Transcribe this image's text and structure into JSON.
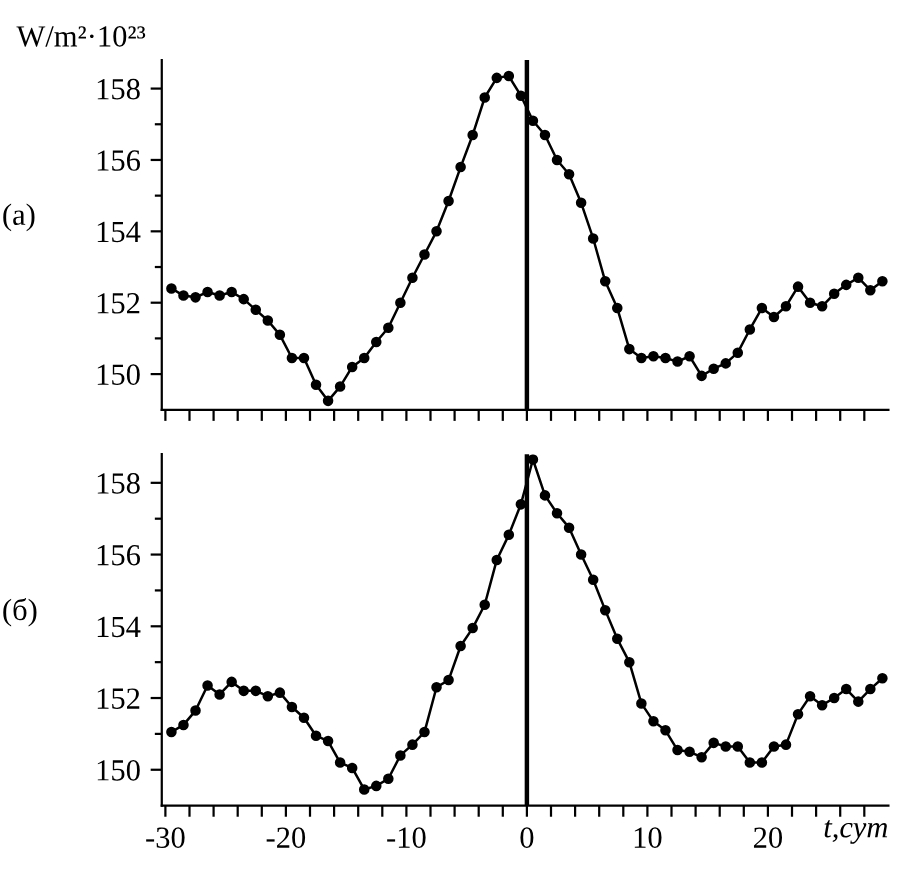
{
  "chart_data": [
    {
      "type": "line",
      "ylabel": "W/m²·10²³",
      "annotations": [
        "(а)"
      ],
      "x": [
        -29.5,
        -28.5,
        -27.5,
        -26.5,
        -25.5,
        -24.5,
        -23.5,
        -22.5,
        -21.5,
        -20.5,
        -19.5,
        -18.5,
        -17.5,
        -16.5,
        -15.5,
        -14.5,
        -13.5,
        -12.5,
        -11.5,
        -10.5,
        -9.5,
        -8.5,
        -7.5,
        -6.5,
        -5.5,
        -4.5,
        -3.5,
        -2.5,
        -1.5,
        -0.5,
        0.5,
        1.5,
        2.5,
        3.5,
        4.5,
        5.5,
        6.5,
        7.5,
        8.5,
        9.5,
        10.5,
        11.5,
        12.5,
        13.5,
        14.5,
        15.5,
        16.5,
        17.5,
        18.5,
        19.5,
        20.5,
        21.5,
        22.5,
        23.5,
        24.5,
        25.5,
        26.5,
        27.5,
        28.5,
        29.5
      ],
      "series": [
        {
          "color": "#000000",
          "values": [
            152.4,
            152.2,
            152.15,
            152.3,
            152.2,
            152.3,
            152.1,
            151.8,
            151.5,
            151.1,
            150.45,
            150.45,
            149.7,
            149.25,
            149.65,
            150.2,
            150.45,
            150.9,
            151.3,
            152.0,
            152.7,
            153.35,
            154.0,
            154.85,
            155.8,
            156.7,
            157.75,
            158.3,
            158.35,
            157.8,
            157.1,
            156.7,
            156.0,
            155.6,
            154.8,
            153.8,
            152.6,
            151.85,
            150.7,
            150.45,
            150.5,
            150.45,
            150.35,
            150.5,
            149.95,
            150.15,
            150.3,
            150.6,
            151.25,
            151.85,
            151.6,
            151.9,
            152.45,
            152.0,
            151.9,
            152.25,
            152.5,
            152.7,
            152.35,
            152.6
          ]
        }
      ],
      "xlim": [
        -30.3,
        30
      ],
      "ylim": [
        149,
        158.8
      ],
      "xticks": [
        {
          "value": -30,
          "label": null
        },
        {
          "value": -28,
          "label": null
        },
        {
          "value": -26,
          "label": null
        },
        {
          "value": -24,
          "label": null
        },
        {
          "value": -22,
          "label": null
        },
        {
          "value": -20,
          "label": null
        },
        {
          "value": -18,
          "label": null
        },
        {
          "value": -16,
          "label": null
        },
        {
          "value": -14,
          "label": null
        },
        {
          "value": -12,
          "label": null
        },
        {
          "value": -10,
          "label": null
        },
        {
          "value": -8,
          "label": null
        },
        {
          "value": -6,
          "label": null
        },
        {
          "value": -4,
          "label": null
        },
        {
          "value": -2,
          "label": null
        },
        {
          "value": 0,
          "label": null
        },
        {
          "value": 2,
          "label": null
        },
        {
          "value": 4,
          "label": null
        },
        {
          "value": 6,
          "label": null
        },
        {
          "value": 8,
          "label": null
        },
        {
          "value": 10,
          "label": null
        },
        {
          "value": 12,
          "label": null
        },
        {
          "value": 14,
          "label": null
        },
        {
          "value": 16,
          "label": null
        },
        {
          "value": 18,
          "label": null
        },
        {
          "value": 20,
          "label": null
        },
        {
          "value": 22,
          "label": null
        },
        {
          "value": 24,
          "label": null
        },
        {
          "value": 26,
          "label": null
        },
        {
          "value": 28,
          "label": null
        }
      ],
      "yticks": [
        150,
        {
          "value": 151,
          "label": null
        },
        152,
        {
          "value": 153,
          "label": null
        },
        154,
        {
          "value": 155,
          "label": null
        },
        156,
        {
          "value": 157,
          "label": null
        },
        158
      ],
      "tick_labels": "y",
      "ref_lines": [
        {
          "axis": "x",
          "value": 0,
          "color": "#000000"
        }
      ],
      "marker": "circle",
      "line_style": "solid",
      "grid": false,
      "legend": false
    },
    {
      "type": "line",
      "xlabel": "t,сут",
      "annotations": [
        "(б)"
      ],
      "x": [
        -29.5,
        -28.5,
        -27.5,
        -26.5,
        -25.5,
        -24.5,
        -23.5,
        -22.5,
        -21.5,
        -20.5,
        -19.5,
        -18.5,
        -17.5,
        -16.5,
        -15.5,
        -14.5,
        -13.5,
        -12.5,
        -11.5,
        -10.5,
        -9.5,
        -8.5,
        -7.5,
        -6.5,
        -5.5,
        -4.5,
        -3.5,
        -2.5,
        -1.5,
        -0.5,
        0.5,
        1.5,
        2.5,
        3.5,
        4.5,
        5.5,
        6.5,
        7.5,
        8.5,
        9.5,
        10.5,
        11.5,
        12.5,
        13.5,
        14.5,
        15.5,
        16.5,
        17.5,
        18.5,
        19.5,
        20.5,
        21.5,
        22.5,
        23.5,
        24.5,
        25.5,
        26.5,
        27.5,
        28.5,
        29.5
      ],
      "series": [
        {
          "color": "#000000",
          "values": [
            151.05,
            151.25,
            151.65,
            152.35,
            152.1,
            152.45,
            152.2,
            152.2,
            152.05,
            152.15,
            151.75,
            151.45,
            150.95,
            150.8,
            150.2,
            150.05,
            149.45,
            149.55,
            149.75,
            150.4,
            150.7,
            151.05,
            152.3,
            152.5,
            153.45,
            153.95,
            154.6,
            155.85,
            156.55,
            157.4,
            158.65,
            157.65,
            157.15,
            156.75,
            156.0,
            155.3,
            154.45,
            153.65,
            153.0,
            151.85,
            151.35,
            151.1,
            150.55,
            150.5,
            150.35,
            150.75,
            150.65,
            150.65,
            150.2,
            150.2,
            150.65,
            150.7,
            151.55,
            152.05,
            151.8,
            152.0,
            152.25,
            151.9,
            152.25,
            152.55
          ]
        }
      ],
      "xlim": [
        -30.3,
        30
      ],
      "ylim": [
        149,
        158.8
      ],
      "xticks": [
        -30,
        {
          "value": -28,
          "label": null
        },
        {
          "value": -26,
          "label": null
        },
        {
          "value": -24,
          "label": null
        },
        {
          "value": -22,
          "label": null
        },
        -20,
        {
          "value": -18,
          "label": null
        },
        {
          "value": -16,
          "label": null
        },
        {
          "value": -14,
          "label": null
        },
        {
          "value": -12,
          "label": null
        },
        -10,
        {
          "value": -8,
          "label": null
        },
        {
          "value": -6,
          "label": null
        },
        {
          "value": -4,
          "label": null
        },
        {
          "value": -2,
          "label": null
        },
        0,
        {
          "value": 2,
          "label": null
        },
        {
          "value": 4,
          "label": null
        },
        {
          "value": 6,
          "label": null
        },
        {
          "value": 8,
          "label": null
        },
        10,
        {
          "value": 12,
          "label": null
        },
        {
          "value": 14,
          "label": null
        },
        {
          "value": 16,
          "label": null
        },
        {
          "value": 18,
          "label": null
        },
        20,
        {
          "value": 22,
          "label": null
        },
        {
          "value": 24,
          "label": null
        },
        {
          "value": 26,
          "label": null
        },
        {
          "value": 28,
          "label": null
        }
      ],
      "yticks": [
        150,
        {
          "value": 151,
          "label": null
        },
        152,
        {
          "value": 153,
          "label": null
        },
        154,
        {
          "value": 155,
          "label": null
        },
        156,
        {
          "value": 157,
          "label": null
        },
        158
      ],
      "ref_lines": [
        {
          "axis": "x",
          "value": 0,
          "color": "#000000"
        }
      ],
      "marker": "circle",
      "line_style": "solid",
      "grid": false,
      "legend": false
    }
  ]
}
